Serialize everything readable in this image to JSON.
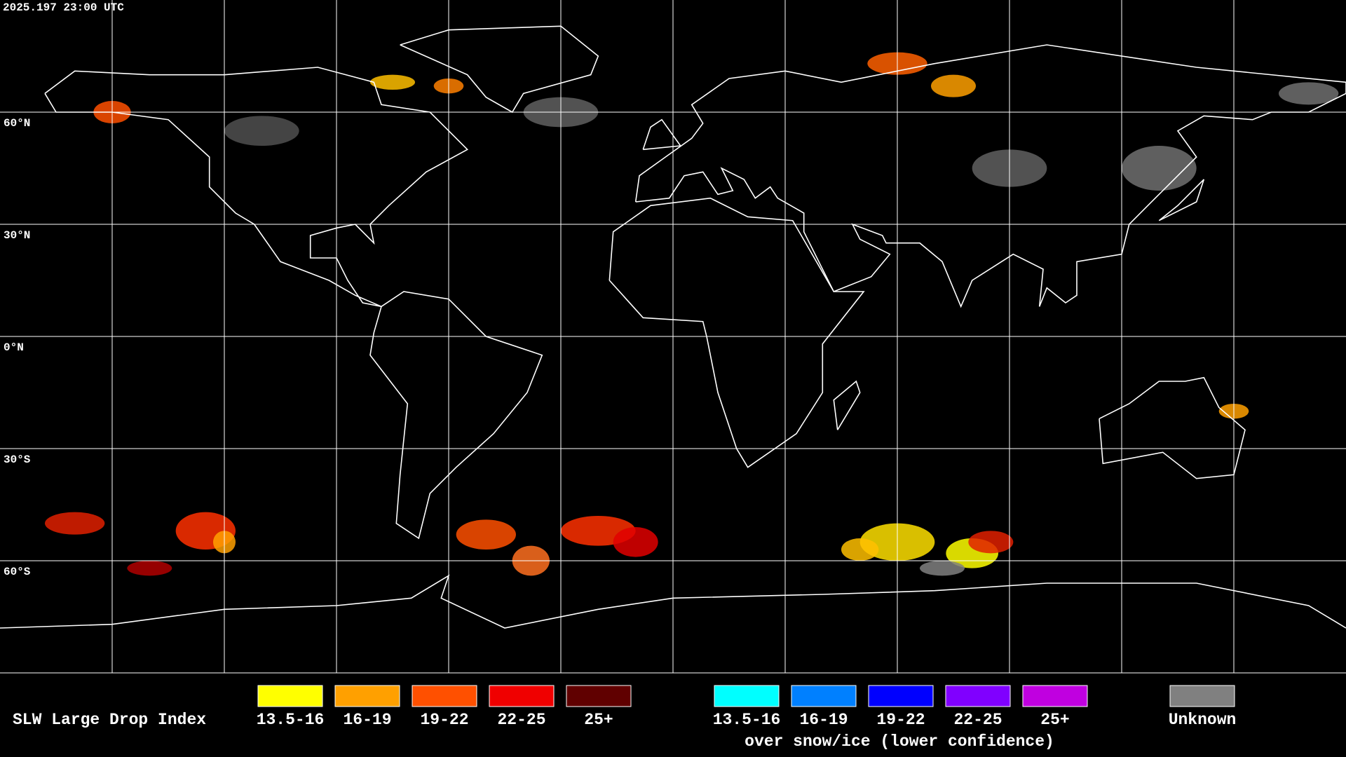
{
  "timestamp": "2025.197 23:00 UTC",
  "lat_labels": [
    "60°N",
    "30°N",
    "0°N",
    "30°S",
    "60°S"
  ],
  "legend": {
    "title": "SLW Large Drop Index",
    "items": [
      {
        "label": "13.5-16",
        "color": "#ffff00"
      },
      {
        "label": "16-19",
        "color": "#ffa000"
      },
      {
        "label": "19-22",
        "color": "#ff5000"
      },
      {
        "label": "22-25",
        "color": "#f00000"
      },
      {
        "label": "25+",
        "color": "#600000"
      }
    ],
    "snow_items": [
      {
        "label": "13.5-16",
        "color": "#00ffff"
      },
      {
        "label": "16-19",
        "color": "#0080ff"
      },
      {
        "label": "19-22",
        "color": "#0000ff"
      },
      {
        "label": "22-25",
        "color": "#8000ff"
      },
      {
        "label": "25+",
        "color": "#c000e0"
      }
    ],
    "snow_caption": "over snow/ice (lower confidence)",
    "unknown": {
      "label": "Unknown",
      "color": "#808080"
    }
  }
}
